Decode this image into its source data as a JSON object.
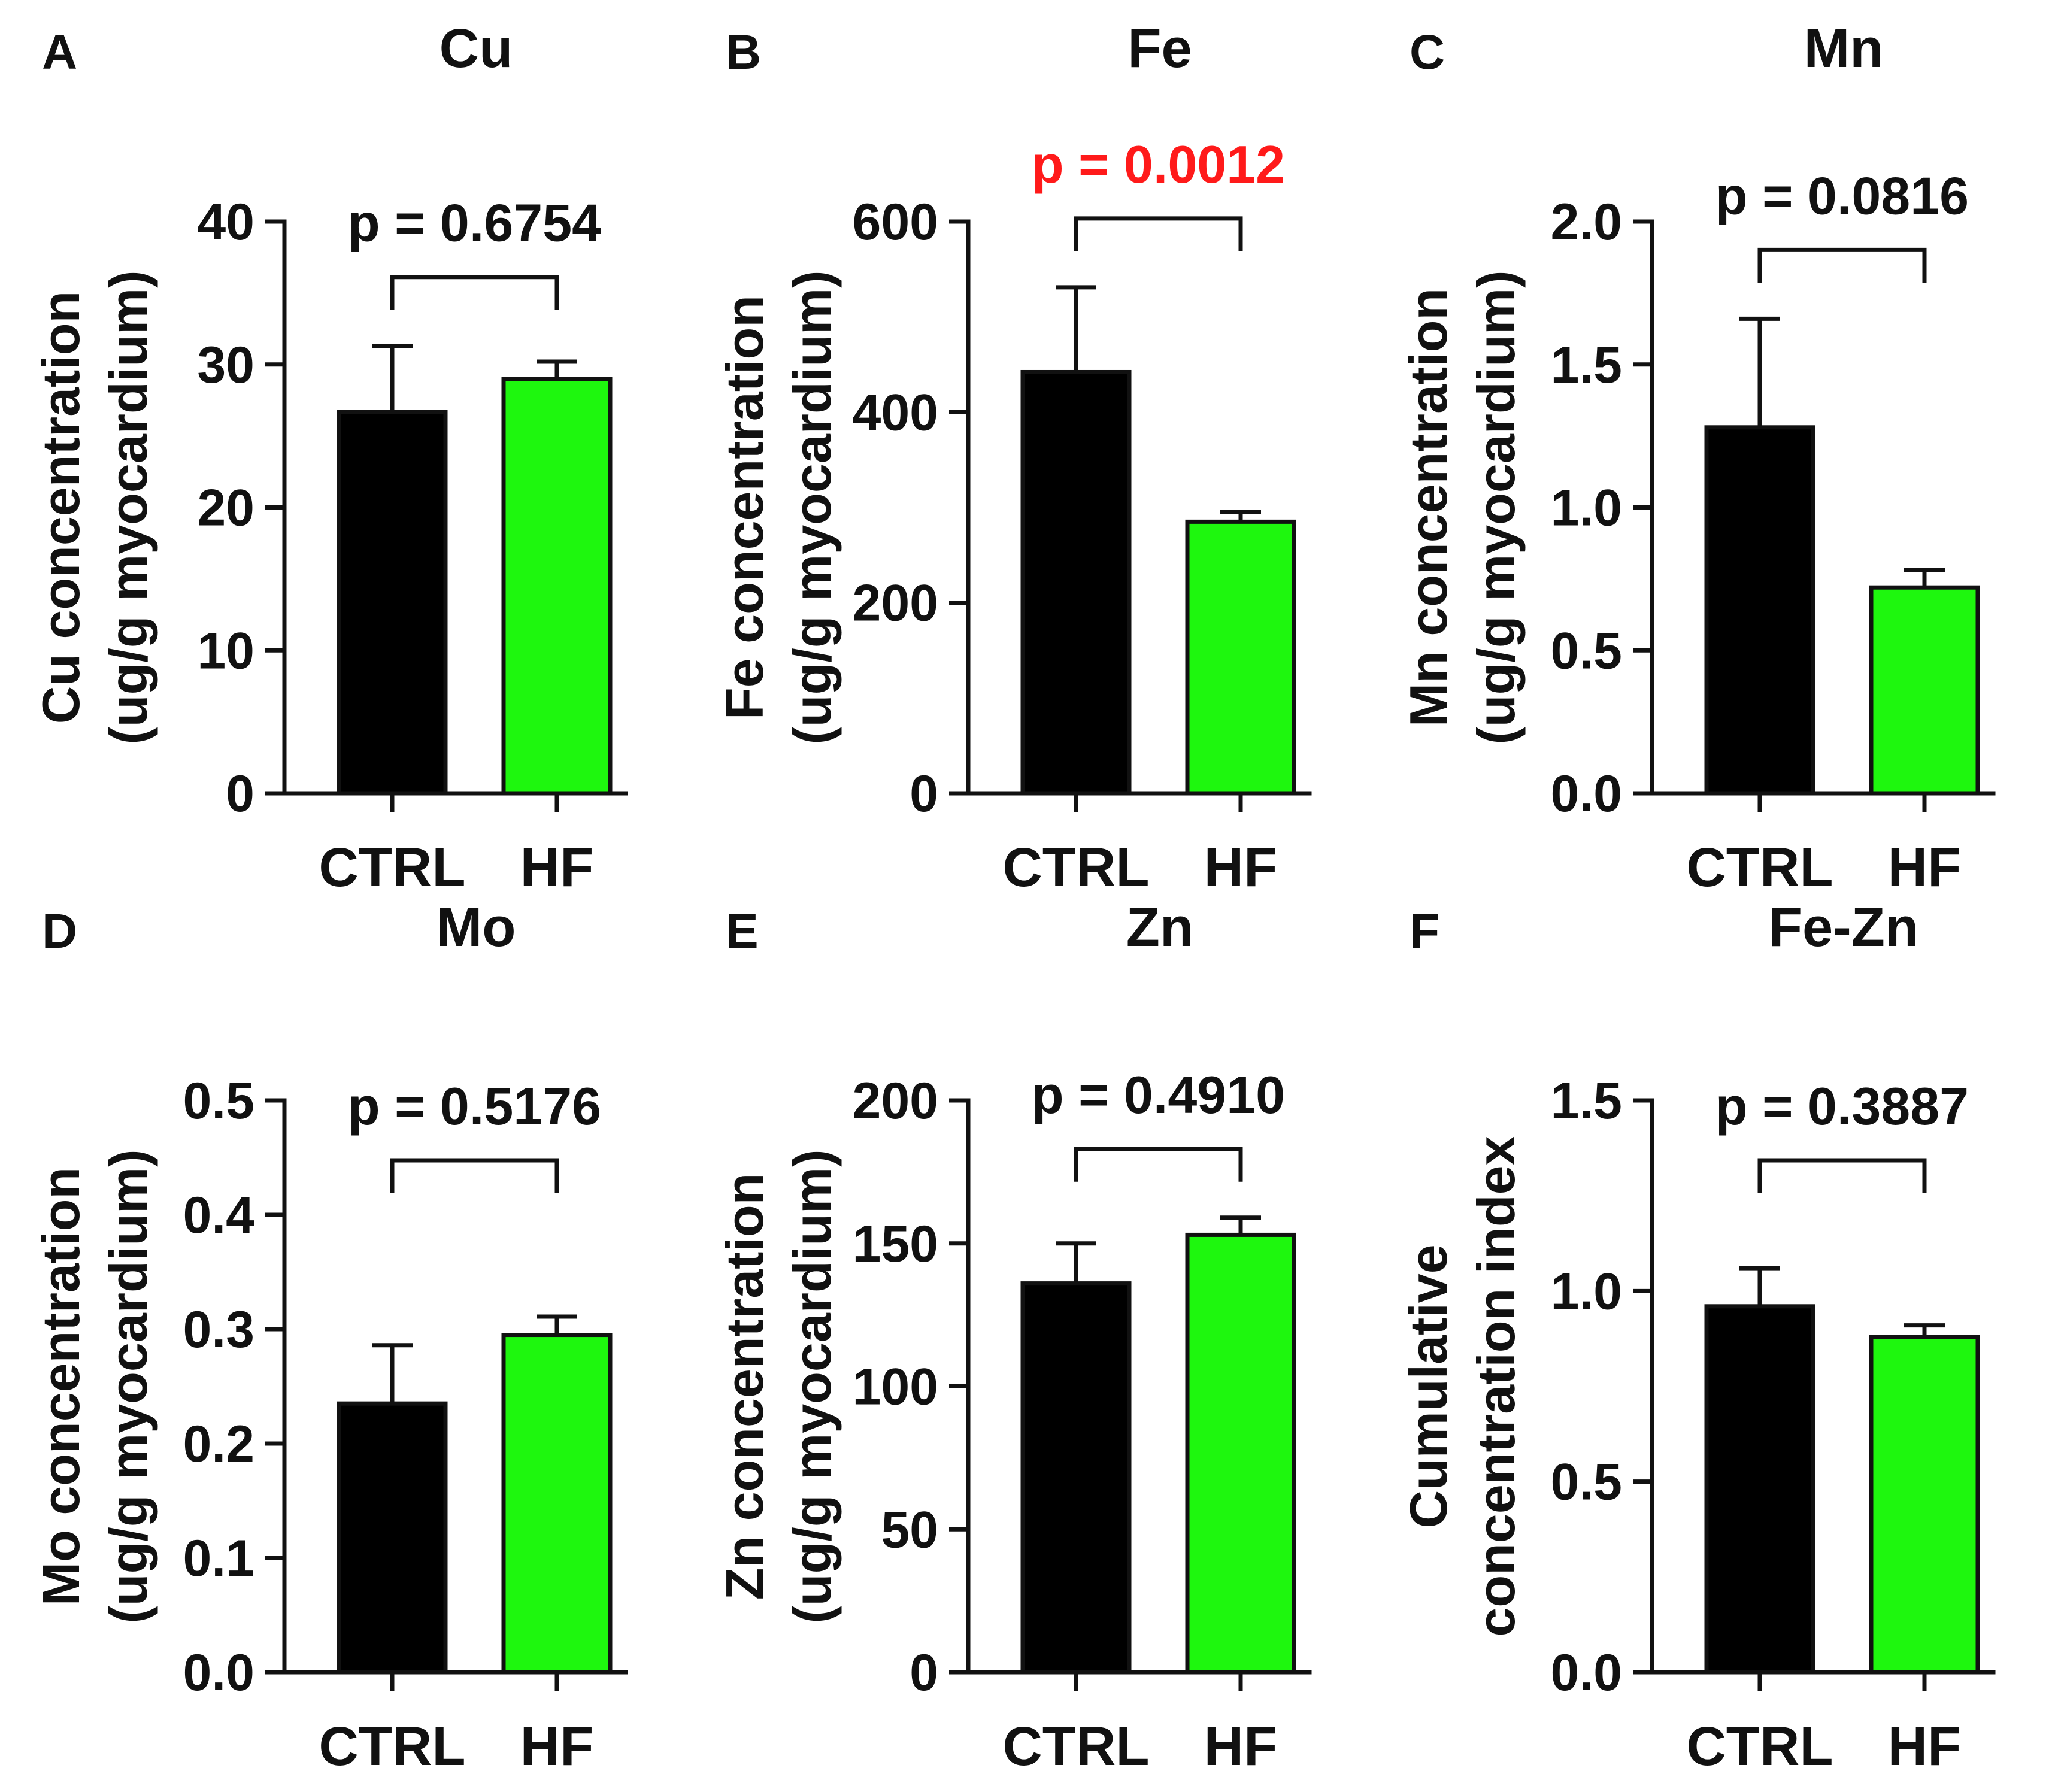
{
  "figure": {
    "colors": {
      "ctrl": "#000000",
      "hf": "#1ef70e",
      "axis": "#111111",
      "significant": "#ff1a1a",
      "default_text": "#111111"
    }
  },
  "chart_data": [
    {
      "panel": "A",
      "title": "Cu",
      "type": "bar",
      "ylabel_line1": "Cu concentration",
      "ylabel_line2": "(ug/g myocardium)",
      "categories": [
        "CTRL",
        "HF"
      ],
      "values": [
        26.7,
        29.0
      ],
      "errors": [
        4.6,
        1.2
      ],
      "ylim": [
        0,
        40
      ],
      "yticks": [
        "0",
        "10",
        "20",
        "30",
        "40"
      ],
      "p_label": "p = 0.6754",
      "significant": false
    },
    {
      "panel": "B",
      "title": "Fe",
      "type": "bar",
      "ylabel_line1": "Fe concentration",
      "ylabel_line2": "(ug/g myocardium)",
      "categories": [
        "CTRL",
        "HF"
      ],
      "values": [
        442,
        285
      ],
      "errors": [
        89,
        10
      ],
      "ylim": [
        0,
        600
      ],
      "yticks": [
        "0",
        "200",
        "400",
        "600"
      ],
      "p_label": "p = 0.0012",
      "significant": true
    },
    {
      "panel": "C",
      "title": "Mn",
      "type": "bar",
      "ylabel_line1": "Mn concentration",
      "ylabel_line2": "(ug/g myocardium)",
      "categories": [
        "CTRL",
        "HF"
      ],
      "values": [
        1.28,
        0.72
      ],
      "errors": [
        0.38,
        0.06
      ],
      "ylim": [
        0,
        2.0
      ],
      "yticks": [
        "0.0",
        "0.5",
        "1.0",
        "1.5",
        "2.0"
      ],
      "p_label": "p = 0.0816",
      "significant": false
    },
    {
      "panel": "D",
      "title": "Mo",
      "type": "bar",
      "ylabel_line1": "Mo concentration",
      "ylabel_line2": "(ug/g myocardium)",
      "categories": [
        "CTRL",
        "HF"
      ],
      "values": [
        0.235,
        0.295
      ],
      "errors": [
        0.051,
        0.016
      ],
      "ylim": [
        0,
        0.5
      ],
      "yticks": [
        "0.0",
        "0.1",
        "0.2",
        "0.3",
        "0.4",
        "0.5"
      ],
      "p_label": "p = 0.5176",
      "significant": false
    },
    {
      "panel": "E",
      "title": "Zn",
      "type": "bar",
      "ylabel_line1": "Zn concentration",
      "ylabel_line2": "(ug/g myocardium)",
      "categories": [
        "CTRL",
        "HF"
      ],
      "values": [
        136,
        153
      ],
      "errors": [
        14,
        6
      ],
      "ylim": [
        0,
        200
      ],
      "yticks": [
        "0",
        "50",
        "100",
        "150",
        "200"
      ],
      "p_label": "p = 0.4910",
      "significant": false
    },
    {
      "panel": "F",
      "title": "Fe-Zn",
      "type": "bar",
      "ylabel_line1": "Cumulative",
      "ylabel_line2": "concentration index",
      "categories": [
        "CTRL",
        "HF"
      ],
      "values": [
        0.96,
        0.88
      ],
      "errors": [
        0.1,
        0.03
      ],
      "ylim": [
        0,
        1.5
      ],
      "yticks": [
        "0.0",
        "0.5",
        "1.0",
        "1.5"
      ],
      "p_label": "p = 0.3887",
      "significant": false
    }
  ]
}
